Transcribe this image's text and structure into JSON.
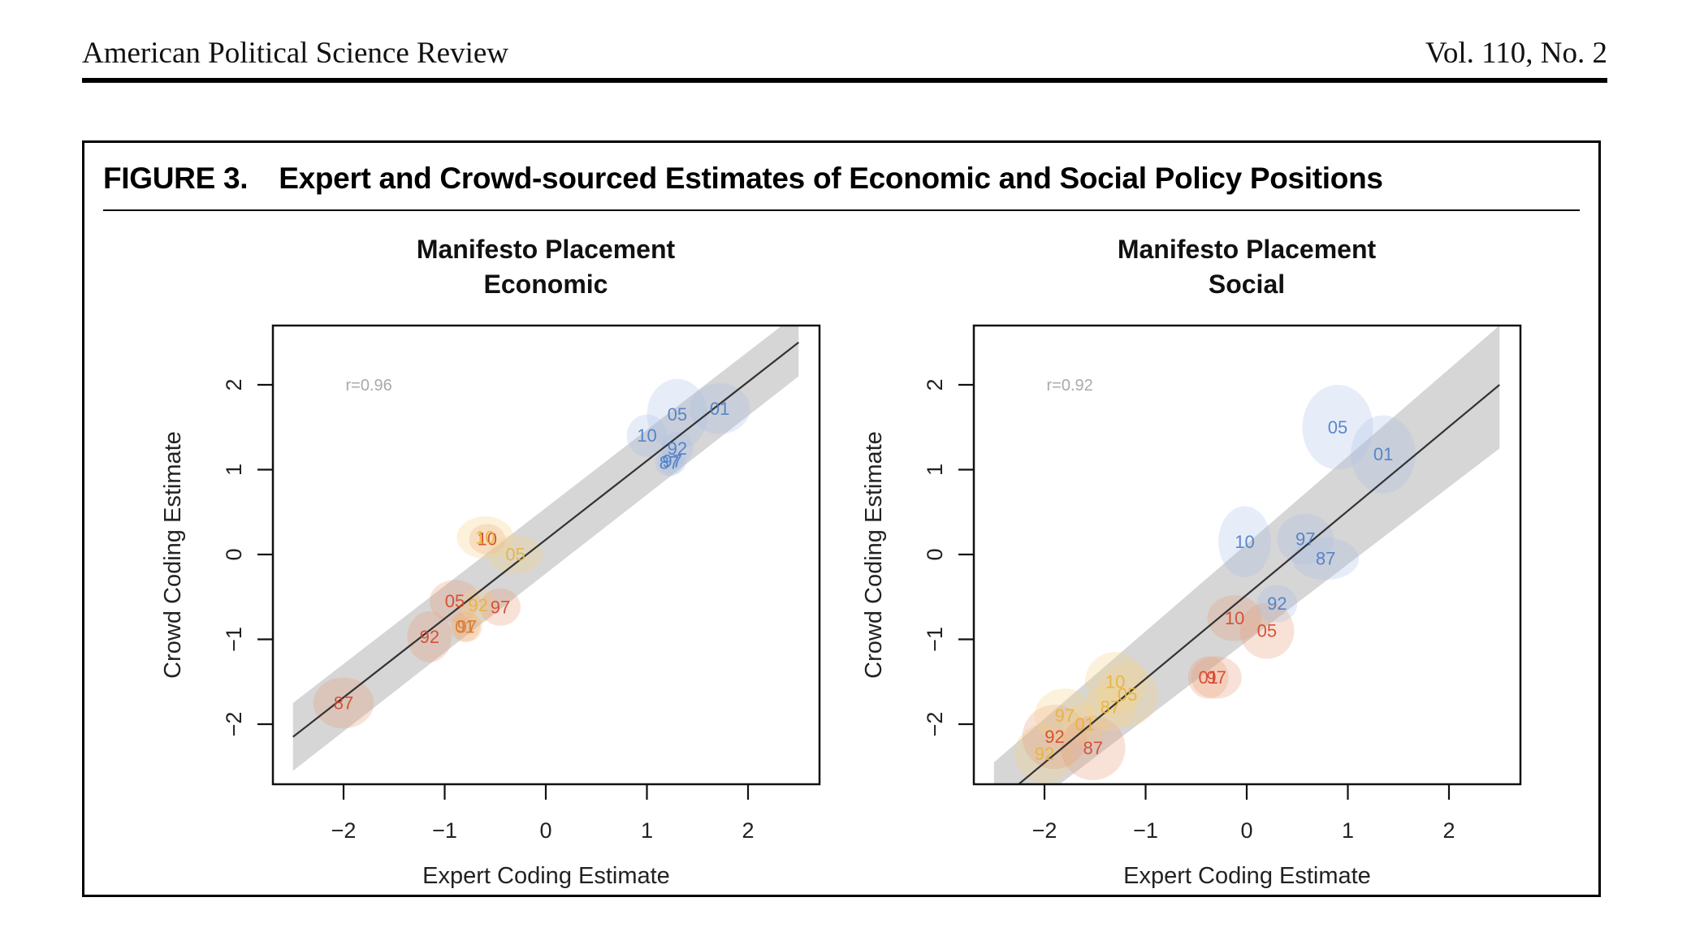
{
  "header": {
    "journal": "American Political Science Review",
    "volume": "Vol. 110, No. 2"
  },
  "figure": {
    "number": "FIGURE 3.",
    "title": "Expert and Crowd-sourced Estimates of Economic and Social Policy Positions"
  },
  "palette": {
    "red": "#d4442a",
    "orange": "#e07a2e",
    "yellow": "#e8b23a",
    "blue": "#4a7cc4",
    "ellipse_red": "#e9a07a",
    "ellipse_orange": "#f0b27a",
    "ellipse_yellow": "#f6d48a",
    "ellipse_blue": "#a9bde6",
    "band": "#c8c8c8",
    "fit_line": "#333333"
  },
  "chart_data": [
    {
      "type": "scatter",
      "title_line1": "Manifesto Placement",
      "title_line2": "Economic",
      "xlabel": "Expert Coding Estimate",
      "ylabel": "Crowd Coding Estimate",
      "xlim": [
        -2.7,
        2.7
      ],
      "ylim": [
        -2.7,
        2.55
      ],
      "xticks": [
        -2,
        -1,
        0,
        1,
        2
      ],
      "xtick_labels": [
        "−2",
        "−1",
        "0",
        "1",
        "2"
      ],
      "yticks": [
        -2,
        -1,
        0,
        1,
        2
      ],
      "ytick_labels": [
        "−2",
        "−1",
        "0",
        "1",
        "2"
      ],
      "annotation": "r=0.96",
      "fit": {
        "x_range": [
          -2.5,
          2.5
        ],
        "y_at_start": -2.15,
        "y_at_end": 2.5,
        "ci_lower_at_start": -2.55,
        "ci_upper_at_start": -1.75,
        "ci_lower_at_end": 2.1,
        "ci_upper_at_end": 2.85
      },
      "points": [
        {
          "label": "87",
          "color": "red",
          "x": -2.0,
          "y": -1.75,
          "rx": 0.3,
          "ry": 0.3
        },
        {
          "label": "92",
          "color": "red",
          "x": -1.15,
          "y": -0.97,
          "rx": 0.22,
          "ry": 0.3
        },
        {
          "label": "05",
          "color": "red",
          "x": -0.9,
          "y": -0.55,
          "rx": 0.25,
          "ry": 0.25
        },
        {
          "label": "01",
          "color": "orange",
          "x": -0.8,
          "y": -0.85,
          "rx": 0.15,
          "ry": 0.18
        },
        {
          "label": "97",
          "color": "orange",
          "x": -0.78,
          "y": -0.85,
          "rx": 0.15,
          "ry": 0.18
        },
        {
          "label": "92",
          "color": "yellow",
          "x": -0.67,
          "y": -0.6,
          "rx": 0.18,
          "ry": 0.2
        },
        {
          "label": "97",
          "color": "red",
          "x": -0.45,
          "y": -0.62,
          "rx": 0.2,
          "ry": 0.22
        },
        {
          "label": "10",
          "color": "red",
          "x": -0.58,
          "y": 0.18,
          "rx": 0.18,
          "ry": 0.18
        },
        {
          "label": "10",
          "color": "yellow",
          "x": -0.6,
          "y": 0.2,
          "rx": 0.28,
          "ry": 0.25
        },
        {
          "label": "05",
          "color": "yellow",
          "x": -0.3,
          "y": 0.0,
          "rx": 0.27,
          "ry": 0.23
        },
        {
          "label": "10",
          "color": "blue",
          "x": 1.0,
          "y": 1.4,
          "rx": 0.2,
          "ry": 0.25
        },
        {
          "label": "05",
          "color": "blue",
          "x": 1.3,
          "y": 1.65,
          "rx": 0.3,
          "ry": 0.42
        },
        {
          "label": "01",
          "color": "blue",
          "x": 1.72,
          "y": 1.72,
          "rx": 0.3,
          "ry": 0.3
        },
        {
          "label": "92",
          "color": "blue",
          "x": 1.3,
          "y": 1.25,
          "rx": 0.16,
          "ry": 0.2
        },
        {
          "label": "97",
          "color": "blue",
          "x": 1.25,
          "y": 1.1,
          "rx": 0.14,
          "ry": 0.16
        },
        {
          "label": "87",
          "color": "blue",
          "x": 1.22,
          "y": 1.08,
          "rx": 0.14,
          "ry": 0.16
        }
      ]
    },
    {
      "type": "scatter",
      "title_line1": "Manifesto Placement",
      "title_line2": "Social",
      "xlabel": "Expert Coding Estimate",
      "ylabel": "Crowd Coding Estimate",
      "xlim": [
        -2.7,
        2.7
      ],
      "ylim": [
        -2.7,
        2.55
      ],
      "xticks": [
        -2,
        -1,
        0,
        1,
        2
      ],
      "xtick_labels": [
        "−2",
        "−1",
        "0",
        "1",
        "2"
      ],
      "yticks": [
        -2,
        -1,
        0,
        1,
        2
      ],
      "ytick_labels": [
        "−2",
        "−1",
        "0",
        "1",
        "2"
      ],
      "annotation": "r=0.92",
      "fit": {
        "x_range": [
          -2.5,
          2.5
        ],
        "y_at_start": -2.95,
        "y_at_end": 2.0,
        "ci_lower_at_start": -3.3,
        "ci_upper_at_start": -2.45,
        "ci_lower_at_end": 1.25,
        "ci_upper_at_end": 2.7
      },
      "points": [
        {
          "label": "92",
          "color": "yellow",
          "x": -2.0,
          "y": -2.35,
          "rx": 0.3,
          "ry": 0.35
        },
        {
          "label": "92",
          "color": "red",
          "x": -1.9,
          "y": -2.15,
          "rx": 0.32,
          "ry": 0.38
        },
        {
          "label": "97",
          "color": "yellow",
          "x": -1.8,
          "y": -1.9,
          "rx": 0.3,
          "ry": 0.32
        },
        {
          "label": "01",
          "color": "yellow",
          "x": -1.6,
          "y": -2.0,
          "rx": 0.22,
          "ry": 0.25
        },
        {
          "label": "87",
          "color": "red",
          "x": -1.52,
          "y": -2.28,
          "rx": 0.32,
          "ry": 0.38
        },
        {
          "label": "87",
          "color": "yellow",
          "x": -1.35,
          "y": -1.8,
          "rx": 0.25,
          "ry": 0.28
        },
        {
          "label": "10",
          "color": "yellow",
          "x": -1.3,
          "y": -1.5,
          "rx": 0.3,
          "ry": 0.35
        },
        {
          "label": "05",
          "color": "yellow",
          "x": -1.18,
          "y": -1.65,
          "rx": 0.3,
          "ry": 0.38
        },
        {
          "label": "01",
          "color": "red",
          "x": -0.38,
          "y": -1.45,
          "rx": 0.2,
          "ry": 0.25
        },
        {
          "label": "97",
          "color": "red",
          "x": -0.3,
          "y": -1.45,
          "rx": 0.25,
          "ry": 0.25
        },
        {
          "label": "10",
          "color": "red",
          "x": -0.12,
          "y": -0.75,
          "rx": 0.27,
          "ry": 0.27
        },
        {
          "label": "05",
          "color": "red",
          "x": 0.2,
          "y": -0.9,
          "rx": 0.27,
          "ry": 0.33
        },
        {
          "label": "92",
          "color": "blue",
          "x": 0.3,
          "y": -0.58,
          "rx": 0.2,
          "ry": 0.22
        },
        {
          "label": "10",
          "color": "blue",
          "x": -0.02,
          "y": 0.15,
          "rx": 0.26,
          "ry": 0.42
        },
        {
          "label": "97",
          "color": "blue",
          "x": 0.58,
          "y": 0.18,
          "rx": 0.28,
          "ry": 0.3
        },
        {
          "label": "87",
          "color": "blue",
          "x": 0.78,
          "y": -0.05,
          "rx": 0.33,
          "ry": 0.25
        },
        {
          "label": "05",
          "color": "blue",
          "x": 0.9,
          "y": 1.5,
          "rx": 0.35,
          "ry": 0.5
        },
        {
          "label": "01",
          "color": "blue",
          "x": 1.35,
          "y": 1.18,
          "rx": 0.32,
          "ry": 0.46
        }
      ]
    }
  ]
}
